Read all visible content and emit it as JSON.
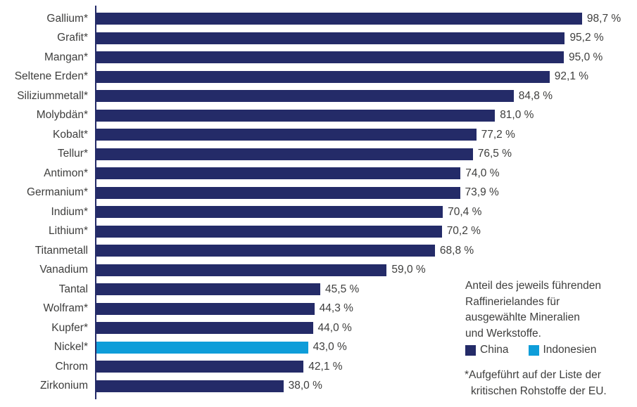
{
  "colors": {
    "china": "#242b68",
    "indonesien": "#0e9dd9",
    "text": "#3e3e3d",
    "axis": "#242b68"
  },
  "chart_data": {
    "type": "bar",
    "orientation": "horizontal",
    "unit": "%",
    "xlim": [
      0,
      100
    ],
    "grid": false,
    "legend_position": "right-bottom",
    "bars": [
      {
        "label": "Gallium*",
        "value": 98.7,
        "value_label": "98,7 %",
        "series": "China"
      },
      {
        "label": "Grafit*",
        "value": 95.2,
        "value_label": "95,2 %",
        "series": "China"
      },
      {
        "label": "Mangan*",
        "value": 95.0,
        "value_label": "95,0 %",
        "series": "China"
      },
      {
        "label": "Seltene Erden*",
        "value": 92.1,
        "value_label": "92,1 %",
        "series": "China"
      },
      {
        "label": "Siliziummetall*",
        "value": 84.8,
        "value_label": "84,8 %",
        "series": "China"
      },
      {
        "label": "Molybdän*",
        "value": 81.0,
        "value_label": "81,0 %",
        "series": "China"
      },
      {
        "label": "Kobalt*",
        "value": 77.2,
        "value_label": "77,2 %",
        "series": "China"
      },
      {
        "label": "Tellur*",
        "value": 76.5,
        "value_label": "76,5 %",
        "series": "China"
      },
      {
        "label": "Antimon*",
        "value": 74.0,
        "value_label": "74,0 %",
        "series": "China"
      },
      {
        "label": "Germanium*",
        "value": 73.9,
        "value_label": "73,9 %",
        "series": "China"
      },
      {
        "label": "Indium*",
        "value": 70.4,
        "value_label": "70,4 %",
        "series": "China"
      },
      {
        "label": "Lithium*",
        "value": 70.2,
        "value_label": "70,2 %",
        "series": "China"
      },
      {
        "label": "Titanmetall",
        "value": 68.8,
        "value_label": "68,8 %",
        "series": "China"
      },
      {
        "label": "Vanadium",
        "value": 59.0,
        "value_label": "59,0 %",
        "series": "China"
      },
      {
        "label": "Tantal",
        "value": 45.5,
        "value_label": "45,5 %",
        "series": "China"
      },
      {
        "label": "Wolfram*",
        "value": 44.3,
        "value_label": "44,3 %",
        "series": "China"
      },
      {
        "label": "Kupfer*",
        "value": 44.0,
        "value_label": "44,0 %",
        "series": "China"
      },
      {
        "label": "Nickel*",
        "value": 43.0,
        "value_label": "43,0 %",
        "series": "Indonesien"
      },
      {
        "label": "Chrom",
        "value": 42.1,
        "value_label": "42,1 %",
        "series": "China"
      },
      {
        "label": "Zirkonium",
        "value": 38.0,
        "value_label": "38,0 %",
        "series": "China"
      }
    ],
    "legend": [
      {
        "label": "China",
        "color": "#242b68"
      },
      {
        "label": "Indonesien",
        "color": "#0e9dd9"
      }
    ],
    "annotation": "Anteil des jeweils führenden\nRaffinerielandes für\nausgewählte Mineralien\nund Werkstoffe.",
    "footnote": "*Aufgeführt auf der Liste der\nkritischen Rohstoffe der EU."
  }
}
